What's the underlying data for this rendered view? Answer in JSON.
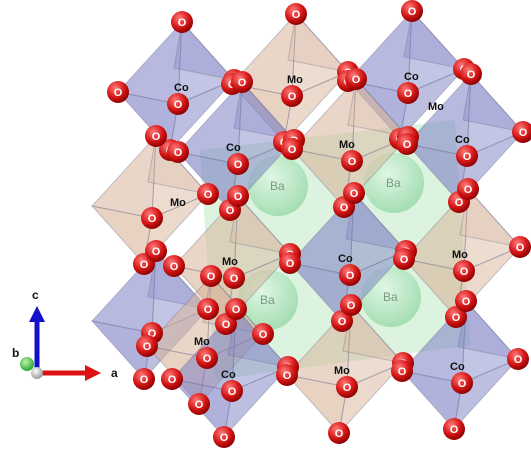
{
  "structure": {
    "atoms": {
      "cobalt": "Co",
      "molybdenum": "Mo",
      "barium": "Ba",
      "oxygen": "O"
    },
    "colors": {
      "co_octahedron": "#7b7fc4",
      "mo_octahedron": "#d8b49a",
      "ba_atom": "#8fdc9f",
      "oxygen_atom": "#cc1111"
    }
  },
  "axes": {
    "a_label": "a",
    "b_label": "b",
    "c_label": "c",
    "a_color": "#dd1111",
    "b_color": "#22bb22",
    "c_color": "#1111cc"
  }
}
